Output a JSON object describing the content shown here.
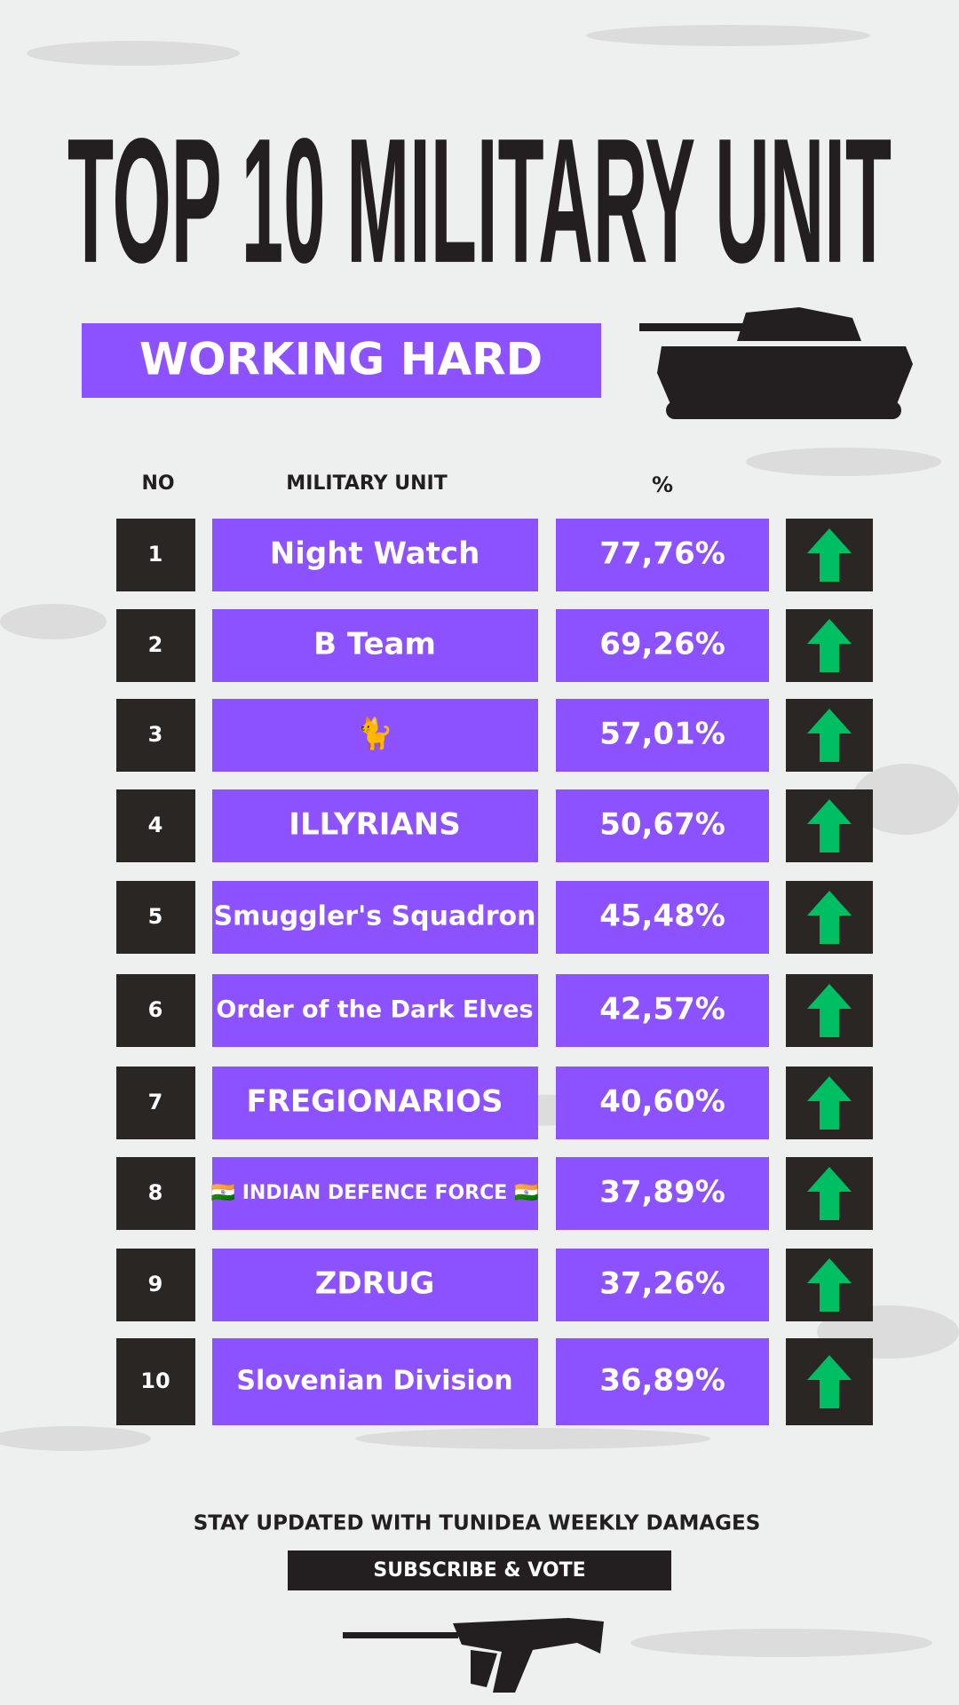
{
  "header": {
    "title": "TOP 10 MILITARY UNIT",
    "subtitle": "WORKING HARD"
  },
  "table": {
    "columns": [
      "NO",
      "MILITARY UNIT",
      "%"
    ],
    "rows": [
      [
        "1",
        "Night Watch",
        "77,76%"
      ],
      [
        "2",
        "B Team",
        "69,26%"
      ],
      [
        "3",
        "🐈",
        "57,01%"
      ],
      [
        "4",
        "ILLYRIANS",
        "50,67%"
      ],
      [
        "5",
        "Smuggler's Squadron",
        "45,48%"
      ],
      [
        "6",
        "Order of the Dark Elves",
        "42,57%"
      ],
      [
        "7",
        "FREGIONARIOS",
        "40,60%"
      ],
      [
        "8",
        "🇮🇳 INDIAN DEFENCE FORCE 🇮🇳",
        "37,89%"
      ],
      [
        "9",
        "ZDRUG",
        "37,26%"
      ],
      [
        "10",
        "Slovenian Division",
        "36,89%"
      ]
    ]
  },
  "footer": {
    "text": "STAY UPDATED WITH TUNIDEA WEEKLY DAMAGES",
    "button": "SUBSCRIBE & VOTE"
  }
}
